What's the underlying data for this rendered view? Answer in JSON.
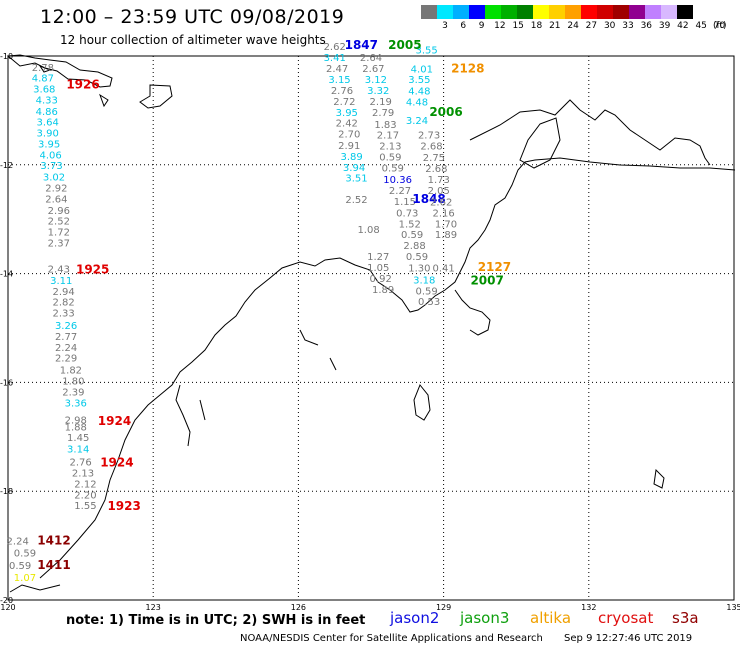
{
  "header": {
    "title": "12:00 – 23:59 UTC 09/08/2019",
    "subtitle": "12 hour collection of altimeter wave heights"
  },
  "scale": {
    "unit": "(ft)",
    "colors": [
      "#777777",
      "#00e8ff",
      "#00b0ff",
      "#0000ff",
      "#00e000",
      "#00b000",
      "#008000",
      "#ffff00",
      "#ffd000",
      "#ffa000",
      "#ff0000",
      "#d00000",
      "#a00000",
      "#900090",
      "#c080ff",
      "#d8b8ff",
      "#000000"
    ],
    "ticks": [
      "3",
      "6",
      "9",
      "12",
      "15",
      "18",
      "21",
      "24",
      "27",
      "30",
      "33",
      "36",
      "39",
      "42",
      "45",
      "70"
    ]
  },
  "map": {
    "lon_labels": [
      "120",
      "123",
      "126",
      "129",
      "132",
      "135"
    ],
    "lat_labels": [
      "-10",
      "-12",
      "-14",
      "-16",
      "-18",
      "-20"
    ]
  },
  "tracks": [
    {
      "name": "cryosat-1926",
      "color": "#777777",
      "label": "1926",
      "label_color": "#e00000",
      "label_pos": [
        121.55,
        -10.6
      ],
      "obs": [
        [
          "2.78",
          "#777777",
          120.72,
          -10.28
        ],
        [
          "4.87",
          "#00c8e8",
          120.72,
          -10.47
        ],
        [
          "3.68",
          "#00c8e8",
          120.75,
          -10.67
        ],
        [
          "4.33",
          "#00c8e8",
          120.8,
          -10.87
        ],
        [
          "4.86",
          "#00c8e8",
          120.8,
          -11.08
        ],
        [
          "3.64",
          "#00c8e8",
          120.82,
          -11.28
        ],
        [
          "3.90",
          "#00c8e8",
          120.82,
          -11.48
        ],
        [
          "3.95",
          "#00c8e8",
          120.85,
          -11.68
        ],
        [
          "4.06",
          "#00c8e8",
          120.88,
          -11.88
        ],
        [
          "3.73",
          "#00c8e8",
          120.9,
          -12.08
        ],
        [
          "3.02",
          "#00c8e8",
          120.95,
          -12.29
        ],
        [
          "2.92",
          "#777777",
          121.0,
          -12.49
        ],
        [
          "2.64",
          "#777777",
          121.0,
          -12.69
        ],
        [
          "2.96",
          "#777777",
          121.05,
          -12.9
        ],
        [
          "2.52",
          "#777777",
          121.05,
          -13.1
        ],
        [
          "1.72",
          "#777777",
          121.05,
          -13.3
        ],
        [
          "2.37",
          "#777777",
          121.05,
          -13.5
        ]
      ]
    },
    {
      "name": "cryosat-1925",
      "color": "#777777",
      "label": "1925",
      "label_color": "#e00000",
      "label_pos": [
        121.75,
        -14.0
      ],
      "obs": [
        [
          "2.43",
          "#777777",
          121.05,
          -13.98
        ],
        [
          "3.11",
          "#00c8e8",
          121.1,
          -14.19
        ],
        [
          "2.94",
          "#777777",
          121.15,
          -14.39
        ],
        [
          "2.82",
          "#777777",
          121.15,
          -14.59
        ],
        [
          "2.33",
          "#777777",
          121.15,
          -14.79
        ],
        [
          "3.26",
          "#00c8e8",
          121.2,
          -15.02
        ],
        [
          "2.77",
          "#777777",
          121.2,
          -15.22
        ],
        [
          "2.24",
          "#777777",
          121.2,
          -15.42
        ],
        [
          "2.29",
          "#777777",
          121.2,
          -15.62
        ],
        [
          "1.82",
          "#777777",
          121.3,
          -15.84
        ],
        [
          "1.80",
          "#777777",
          121.35,
          -16.04
        ],
        [
          "2.39",
          "#777777",
          121.35,
          -16.24
        ],
        [
          "3.36",
          "#00c8e8",
          121.4,
          -16.44
        ]
      ]
    },
    {
      "name": "cryosat-1924a",
      "color": "#777777",
      "label": "1924",
      "label_color": "#e00000",
      "label_pos": [
        122.2,
        -16.78
      ],
      "obs": [
        [
          "2.98",
          "#777777",
          121.4,
          -16.76
        ],
        [
          "1.88",
          "#777777",
          121.4,
          -16.88
        ],
        [
          "1.45",
          "#777777",
          121.45,
          -17.08
        ],
        [
          "3.14",
          "#00c8e8",
          121.45,
          -17.29
        ]
      ]
    },
    {
      "name": "cryosat-1924b",
      "color": "#777777",
      "label": "1924",
      "label_color": "#e00000",
      "label_pos": [
        122.25,
        -17.55
      ],
      "obs": [
        [
          "2.76",
          "#777777",
          121.5,
          -17.53
        ],
        [
          "2.13",
          "#777777",
          121.55,
          -17.73
        ],
        [
          "2.12",
          "#777777",
          121.6,
          -17.93
        ],
        [
          "2.20",
          "#777777",
          121.6,
          -18.13
        ],
        [
          "1.55",
          "#777777",
          121.6,
          -18.33
        ]
      ]
    },
    {
      "name": "cryosat-1923",
      "color": "#777777",
      "label": "1923",
      "label_color": "#e00000",
      "label_pos": [
        122.4,
        -18.35
      ],
      "obs": []
    },
    {
      "name": "s3a-1412",
      "color": "#777777",
      "label": "1412",
      "label_color": "#8b0000",
      "label_pos": [
        120.95,
        -18.98
      ],
      "obs": [
        [
          "2.24",
          "#777777",
          120.2,
          -18.98
        ],
        [
          "0.59",
          "#777777",
          120.35,
          -19.2
        ]
      ]
    },
    {
      "name": "s3a-1411",
      "color": "#777777",
      "label": "1411",
      "label_color": "#8b0000",
      "label_pos": [
        120.95,
        -19.43
      ],
      "obs": [
        [
          "0.59",
          "#777777",
          120.25,
          -19.43
        ],
        [
          "1.07",
          "#e8e800",
          120.35,
          -19.65
        ]
      ]
    },
    {
      "name": "jason2-1847",
      "color": "#777777",
      "label": "1847",
      "label_color": "#0000e0",
      "label_pos": [
        127.3,
        -9.87
      ],
      "obs": [
        [
          "2.62",
          "#777777",
          126.75,
          -9.89
        ],
        [
          "3.41",
          "#00c8e8",
          126.75,
          -10.09
        ],
        [
          "2.47",
          "#777777",
          126.8,
          -10.29
        ],
        [
          "3.15",
          "#00c8e8",
          126.85,
          -10.5
        ],
        [
          "2.76",
          "#777777",
          126.9,
          -10.7
        ],
        [
          "2.72",
          "#777777",
          126.95,
          -10.9
        ],
        [
          "3.95",
          "#00c8e8",
          127.0,
          -11.1
        ],
        [
          "2.42",
          "#777777",
          127.0,
          -11.3
        ],
        [
          "2.70",
          "#777777",
          127.05,
          -11.5
        ],
        [
          "2.91",
          "#777777",
          127.05,
          -11.71
        ],
        [
          "3.89",
          "#00c8e8",
          127.1,
          -11.91
        ],
        [
          "3.94",
          "#00c8e8",
          127.15,
          -12.11
        ],
        [
          "3.51",
          "#00c8e8",
          127.2,
          -12.31
        ]
      ]
    },
    {
      "name": "jason2-1848",
      "color": "#777777",
      "label": "1848",
      "label_color": "#0000e0",
      "label_pos": [
        128.7,
        -12.7
      ],
      "obs": [
        [
          "2.64",
          "#777777",
          127.5,
          -10.09
        ],
        [
          "2.67",
          "#777777",
          127.55,
          -10.29
        ],
        [
          "3.12",
          "#00c8e8",
          127.6,
          -10.5
        ],
        [
          "3.32",
          "#00c8e8",
          127.65,
          -10.7
        ],
        [
          "2.19",
          "#777777",
          127.7,
          -10.9
        ],
        [
          "2.79",
          "#777777",
          127.75,
          -11.1
        ],
        [
          "1.83",
          "#777777",
          127.8,
          -11.32
        ],
        [
          "2.17",
          "#777777",
          127.85,
          -11.52
        ],
        [
          "2.13",
          "#777777",
          127.9,
          -11.72
        ],
        [
          "0.59",
          "#777777",
          127.9,
          -11.92
        ],
        [
          "0.59",
          "#777777",
          127.95,
          -12.12
        ],
        [
          "10.36",
          "#0000e0",
          128.05,
          -12.33
        ],
        [
          "2.52",
          "#777777",
          127.2,
          -12.7
        ],
        [
          "2.27",
          "#777777",
          128.1,
          -12.54
        ],
        [
          "1.15",
          "#777777",
          128.2,
          -12.74
        ],
        [
          "0.73",
          "#777777",
          128.25,
          -12.95
        ],
        [
          "1.52",
          "#777777",
          128.3,
          -13.15
        ],
        [
          "0.59",
          "#777777",
          128.35,
          -13.35
        ],
        [
          "2.88",
          "#777777",
          128.4,
          -13.55
        ],
        [
          "0.59",
          "#777777",
          128.45,
          -13.75
        ],
        [
          "1.30",
          "#777777",
          128.5,
          -13.96
        ],
        [
          "3.18",
          "#00c8e8",
          128.6,
          -14.18
        ],
        [
          "0.59",
          "#777777",
          128.65,
          -14.38
        ],
        [
          "0.53",
          "#777777",
          128.7,
          -14.58
        ]
      ]
    },
    {
      "name": "jason3-2005",
      "color": "#777777",
      "label": "2005",
      "label_color": "#009000",
      "label_pos": [
        128.2,
        -9.87
      ],
      "obs": [
        [
          "3.55",
          "#00c8e8",
          128.65,
          -9.95
        ],
        [
          "4.01",
          "#00c8e8",
          128.55,
          -10.3
        ],
        [
          "3.55",
          "#00c8e8",
          128.5,
          -10.5
        ],
        [
          "4.48",
          "#00c8e8",
          128.5,
          -10.71
        ],
        [
          "4.48",
          "#00c8e8",
          128.45,
          -10.91
        ]
      ]
    },
    {
      "name": "jason3-2006",
      "color": "#777777",
      "label": "2006",
      "label_color": "#009000",
      "label_pos": [
        129.05,
        -11.1
      ],
      "obs": [
        [
          "3.24",
          "#00c8e8",
          128.45,
          -11.25
        ],
        [
          "2.73",
          "#777777",
          128.7,
          -11.52
        ],
        [
          "2.68",
          "#777777",
          128.75,
          -11.72
        ],
        [
          "2.75",
          "#777777",
          128.8,
          -11.93
        ],
        [
          "2.68",
          "#777777",
          128.85,
          -12.13
        ],
        [
          "1.73",
          "#777777",
          128.9,
          -12.33
        ],
        [
          "2.05",
          "#777777",
          128.9,
          -12.54
        ],
        [
          "2.62",
          "#777777",
          128.95,
          -12.75
        ],
        [
          "2.16",
          "#777777",
          129.0,
          -12.95
        ],
        [
          "1.70",
          "#777777",
          129.05,
          -13.15
        ],
        [
          "1.89",
          "#777777",
          129.05,
          -13.35
        ]
      ]
    },
    {
      "name": "jason3-2007",
      "color": "#777777",
      "label": "2007",
      "label_color": "#009000",
      "label_pos": [
        129.9,
        -14.2
      ],
      "obs": [
        [
          "1.08",
          "#777777",
          127.45,
          -13.25
        ],
        [
          "1.27",
          "#777777",
          127.65,
          -13.75
        ],
        [
          "1.05",
          "#777777",
          127.65,
          -13.95
        ],
        [
          "0.92",
          "#777777",
          127.7,
          -14.15
        ],
        [
          "1.89",
          "#777777",
          127.75,
          -14.36
        ],
        [
          "0.41",
          "#777777",
          129.0,
          -13.96
        ]
      ]
    },
    {
      "name": "altika-2128",
      "color": "#777777",
      "label": "2128",
      "label_color": "#f09000",
      "label_pos": [
        129.5,
        -10.3
      ],
      "obs": []
    },
    {
      "name": "altika-2127",
      "color": "#777777",
      "label": "2127",
      "label_color": "#f09000",
      "label_pos": [
        130.05,
        -13.95
      ],
      "obs": []
    }
  ],
  "footer": {
    "note": "note: 1) Time is in UTC; 2) SWH is in feet",
    "satellites": [
      {
        "name": "jason2",
        "color": "#1010e0"
      },
      {
        "name": "jason3",
        "color": "#10a010"
      },
      {
        "name": "altika",
        "color": "#f0a000"
      },
      {
        "name": "cryosat",
        "color": "#e01010"
      },
      {
        "name": "s3a",
        "color": "#900000"
      }
    ],
    "credit": "NOAA/NESDIS Center for Satellite Applications and Research",
    "timestamp": "Sep  9 12:27:46 UTC 2019"
  }
}
